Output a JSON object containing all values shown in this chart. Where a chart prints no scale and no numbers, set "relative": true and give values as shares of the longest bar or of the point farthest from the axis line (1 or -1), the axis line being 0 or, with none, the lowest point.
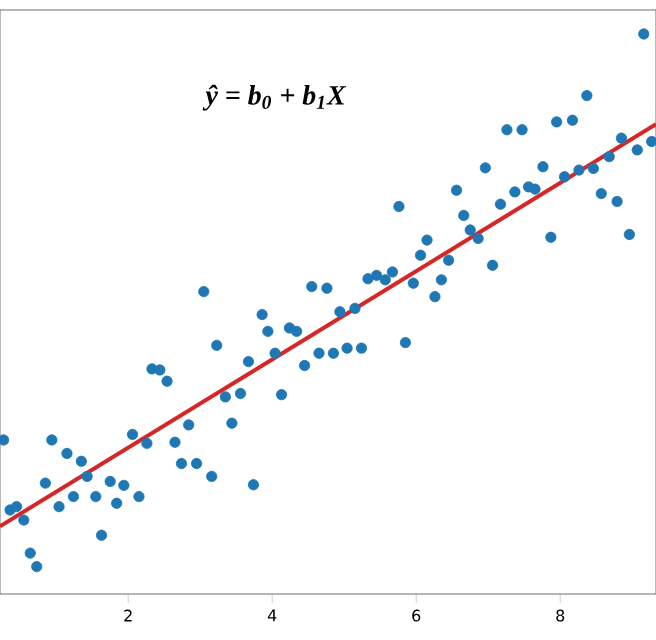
{
  "chart_data": {
    "type": "scatter",
    "relative": true,
    "annotations": [
      "ŷ = b$_{0}$ + b$_{1}$X"
    ],
    "xlim": [
      0.22,
      9.33
    ],
    "xticks": [
      2,
      4,
      6,
      8
    ],
    "series": [
      {
        "marker": "circle",
        "color": "#1f77b4",
        "x": [
          0.27,
          0.36,
          0.45,
          0.55,
          0.64,
          0.73,
          0.85,
          0.94,
          1.04,
          1.15,
          1.24,
          1.35,
          1.43,
          1.55,
          1.63,
          1.75,
          1.84,
          1.94,
          2.06,
          2.15,
          2.26,
          2.33,
          2.44,
          2.54,
          2.65,
          2.74,
          2.84,
          2.95,
          3.05,
          3.16,
          3.23,
          3.35,
          3.44,
          3.56,
          3.67,
          3.74,
          3.86,
          3.94,
          4.04,
          4.13,
          4.24,
          4.34,
          4.45,
          4.55,
          4.65,
          4.76,
          4.85,
          4.94,
          5.04,
          5.15,
          5.24,
          5.33,
          5.45,
          5.57,
          5.67,
          5.76,
          5.85,
          5.96,
          6.06,
          6.15,
          6.26,
          6.35,
          6.45,
          6.56,
          6.66,
          6.75,
          6.86,
          6.96,
          7.06,
          7.17,
          7.26,
          7.37,
          7.47,
          7.56,
          7.65,
          7.76,
          7.87,
          7.95,
          8.06,
          8.17,
          8.26,
          8.37,
          8.46,
          8.57,
          8.68,
          8.79,
          8.85,
          8.96,
          9.07,
          9.16,
          9.27
        ],
        "values": [
          0.275,
          0.15,
          0.156,
          0.132,
          0.073,
          0.049,
          0.198,
          0.275,
          0.156,
          0.251,
          0.174,
          0.237,
          0.21,
          0.174,
          0.105,
          0.201,
          0.162,
          0.194,
          0.285,
          0.174,
          0.269,
          0.402,
          0.4,
          0.38,
          0.271,
          0.233,
          0.302,
          0.233,
          0.54,
          0.21,
          0.444,
          0.352,
          0.305,
          0.358,
          0.415,
          0.195,
          0.499,
          0.469,
          0.43,
          0.356,
          0.475,
          0.469,
          0.408,
          0.549,
          0.43,
          0.546,
          0.43,
          0.504,
          0.439,
          0.51,
          0.439,
          0.563,
          0.569,
          0.561,
          0.575,
          0.692,
          0.449,
          0.555,
          0.605,
          0.632,
          0.531,
          0.561,
          0.596,
          0.721,
          0.676,
          0.65,
          0.635,
          0.761,
          0.587,
          0.696,
          0.829,
          0.718,
          0.829,
          0.727,
          0.723,
          0.763,
          0.637,
          0.843,
          0.745,
          0.846,
          0.757,
          0.89,
          0.76,
          0.715,
          0.781,
          0.701,
          0.814,
          0.642,
          0.793,
          1.0,
          0.808
        ]
      },
      {
        "type": "line",
        "marker": "none",
        "color": "#d62728",
        "x": [
          0.22,
          9.33
        ],
        "values": [
          0.121,
          0.839
        ]
      }
    ]
  }
}
